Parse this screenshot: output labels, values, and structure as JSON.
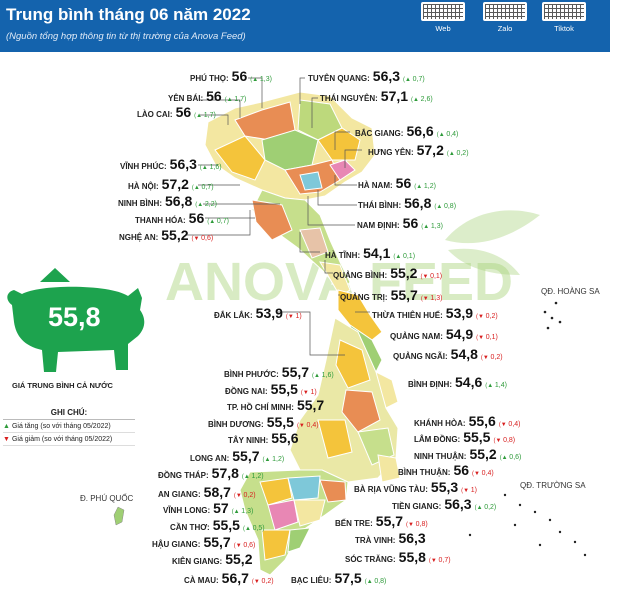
{
  "header": {
    "title": "Trung bình tháng 06 năm 2022",
    "subtitle": "(Nguồn tổng hợp thông tin từ thị trường của Anova Feed)",
    "qr_codes": [
      {
        "label": "Web"
      },
      {
        "label": "Zalo"
      },
      {
        "label": "Tiktok"
      }
    ]
  },
  "watermark": "ANOVA FEED",
  "national": {
    "value": "55,8",
    "caption": "GIÁ TRUNG BÌNH CẢ NƯỚC"
  },
  "legend": {
    "title": "GHI CHÚ:",
    "up": {
      "label": "Giá tăng",
      "note": "(so với tháng 05/2022)",
      "color": "#2e9b3a"
    },
    "down": {
      "label": "Giá giảm",
      "note": "(so với tháng 05/2022)",
      "color": "#d81f1f"
    }
  },
  "islands": {
    "hoang_sa": "QĐ. HOÀNG SA",
    "truong_sa": "QĐ. TRƯỜNG SA",
    "phu_quoc": "Đ. PHÚ QUỐC"
  },
  "provinces": [
    {
      "name": "PHÚ THỌ:",
      "value": "56",
      "dir": "up",
      "delta": "1,3"
    },
    {
      "name": "YÊN BÁI:",
      "value": "56",
      "dir": "up",
      "delta": "1,7"
    },
    {
      "name": "LÀO CAI:",
      "value": "56",
      "dir": "up",
      "delta": "1,7"
    },
    {
      "name": "VĨNH PHÚC:",
      "value": "56,3",
      "dir": "up",
      "delta": "1,6"
    },
    {
      "name": "HÀ NỘI:",
      "value": "57,2",
      "dir": "up",
      "delta": "0,7"
    },
    {
      "name": "NINH BÌNH:",
      "value": "56,8",
      "dir": "up",
      "delta": "2,2"
    },
    {
      "name": "THANH HÓA:",
      "value": "56",
      "dir": "up",
      "delta": "0,7"
    },
    {
      "name": "NGHỆ AN:",
      "value": "55,2",
      "dir": "down",
      "delta": "0,6"
    },
    {
      "name": "TUYÊN QUANG:",
      "value": "56,3",
      "dir": "up",
      "delta": "0,7"
    },
    {
      "name": "THÁI NGUYÊN:",
      "value": "57,1",
      "dir": "up",
      "delta": "2,6"
    },
    {
      "name": "BẮC GIANG:",
      "value": "56,6",
      "dir": "up",
      "delta": "0,4"
    },
    {
      "name": "HƯNG YÊN:",
      "value": "57,2",
      "dir": "up",
      "delta": "0,2"
    },
    {
      "name": "HÀ NAM:",
      "value": "56",
      "dir": "up",
      "delta": "1,2"
    },
    {
      "name": "THÁI BÌNH:",
      "value": "56,8",
      "dir": "up",
      "delta": "0,8"
    },
    {
      "name": "NAM ĐỊNH:",
      "value": "56",
      "dir": "up",
      "delta": "1,3"
    },
    {
      "name": "HÀ TĨNH:",
      "value": "54,1",
      "dir": "up",
      "delta": "0,1"
    },
    {
      "name": "QUẢNG BÌNH:",
      "value": "55,2",
      "dir": "down",
      "delta": "0,1"
    },
    {
      "name": "QUẢNG TRỊ:",
      "value": "55,7",
      "dir": "down",
      "delta": "1,3"
    },
    {
      "name": "ĐẮK LẮK:",
      "value": "53,9",
      "dir": "down",
      "delta": "1"
    },
    {
      "name": "THỪA THIÊN HUẾ:",
      "value": "53,9",
      "dir": "down",
      "delta": "0,2"
    },
    {
      "name": "QUẢNG NAM:",
      "value": "54,9",
      "dir": "down",
      "delta": "0,1"
    },
    {
      "name": "QUẢNG NGÃI:",
      "value": "54,8",
      "dir": "down",
      "delta": "0,2"
    },
    {
      "name": "BÌNH ĐỊNH:",
      "value": "54,6",
      "dir": "up",
      "delta": "1,4"
    },
    {
      "name": "BÌNH PHƯỚC:",
      "value": "55,7",
      "dir": "up",
      "delta": "1,6"
    },
    {
      "name": "ĐỒNG NAI:",
      "value": "55,5",
      "dir": "down",
      "delta": "1"
    },
    {
      "name": "TP. HỒ CHÍ MINH:",
      "value": "55,7",
      "dir": "",
      "delta": ""
    },
    {
      "name": "BÌNH DƯƠNG:",
      "value": "55,5",
      "dir": "down",
      "delta": "0,4"
    },
    {
      "name": "TÂY NINH:",
      "value": "55,6",
      "dir": "",
      "delta": ""
    },
    {
      "name": "KHÁNH HÒA:",
      "value": "55,6",
      "dir": "down",
      "delta": "0,4"
    },
    {
      "name": "LÂM ĐỒNG:",
      "value": "55,5",
      "dir": "down",
      "delta": "0,8"
    },
    {
      "name": "NINH THUẬN:",
      "value": "55,2",
      "dir": "up",
      "delta": "0,6"
    },
    {
      "name": "BÌNH THUẬN:",
      "value": "56",
      "dir": "down",
      "delta": "0,4"
    },
    {
      "name": "LONG AN:",
      "value": "55,7",
      "dir": "up",
      "delta": "1,2"
    },
    {
      "name": "ĐỒNG THÁP:",
      "value": "57,8",
      "dir": "up",
      "delta": "1,2"
    },
    {
      "name": "AN GIANG:",
      "value": "58,7",
      "dir": "down",
      "delta": "0,2"
    },
    {
      "name": "VĨNH LONG:",
      "value": "57",
      "dir": "up",
      "delta": "1,3"
    },
    {
      "name": "CẦN THƠ:",
      "value": "55,5",
      "dir": "up",
      "delta": "0,5"
    },
    {
      "name": "HẬU GIANG:",
      "value": "55,7",
      "dir": "down",
      "delta": "0,6"
    },
    {
      "name": "KIÊN GIANG:",
      "value": "55,2",
      "dir": "",
      "delta": ""
    },
    {
      "name": "CÀ MAU:",
      "value": "56,7",
      "dir": "down",
      "delta": "0,2"
    },
    {
      "name": "BÀ RỊA VŨNG TÀU:",
      "value": "55,3",
      "dir": "down",
      "delta": "1"
    },
    {
      "name": "TIỀN GIANG:",
      "value": "56,3",
      "dir": "up",
      "delta": "0,2"
    },
    {
      "name": "BẾN TRE:",
      "value": "55,7",
      "dir": "down",
      "delta": "0,8"
    },
    {
      "name": "TRÀ VINH:",
      "value": "56,3",
      "dir": "",
      "delta": ""
    },
    {
      "name": "SÓC TRĂNG:",
      "value": "55,8",
      "dir": "down",
      "delta": "0,7"
    },
    {
      "name": "BẠC LIÊU:",
      "value": "57,5",
      "dir": "up",
      "delta": "0,8"
    }
  ]
}
